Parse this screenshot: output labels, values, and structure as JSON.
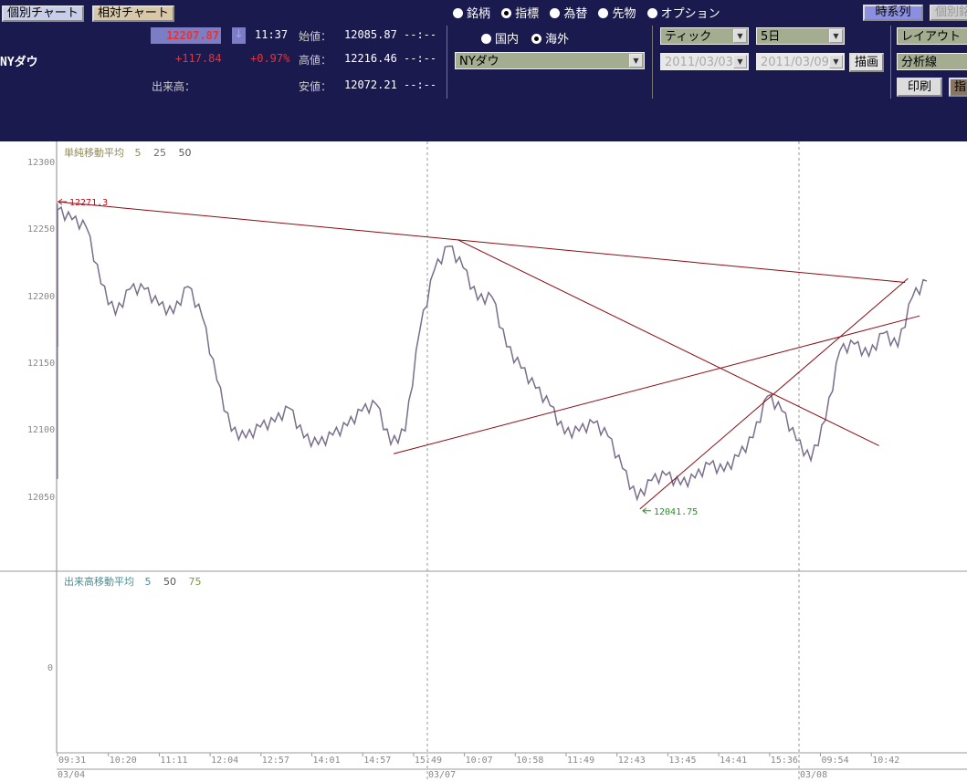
{
  "header": {
    "tabs": [
      "個別チャート",
      "相対チャート"
    ],
    "symbol": "NYダウ",
    "price": "12207.87",
    "arrow": "↓",
    "time": "11:37",
    "change": "+117.84",
    "change_pct": "+0.97%",
    "volume_label": "出来高：",
    "open_label": "始値：",
    "open": "12085.87",
    "open_time": "--:--",
    "high_label": "高値：",
    "high": "12216.46",
    "high_time": "--:--",
    "low_label": "安値：",
    "low": "12072.21",
    "low_time": "--:--"
  },
  "controls": {
    "category_radios": [
      {
        "label": "銘柄",
        "on": false
      },
      {
        "label": "指標",
        "on": true
      },
      {
        "label": "為替",
        "on": false
      },
      {
        "label": "先物",
        "on": false
      },
      {
        "label": "オプション",
        "on": false
      }
    ],
    "region_radios": [
      {
        "label": "国内",
        "on": false
      },
      {
        "label": "海外",
        "on": true
      }
    ],
    "symbol_select": "NYダウ",
    "interval_select": "ティック",
    "period_select": "5日",
    "date_from": "2011/03/03",
    "date_to": "2011/03/09",
    "draw_button": "描画",
    "timeseries_button": "時系列",
    "individual_button": "個別銘",
    "layout_select": "レイアウト",
    "analysis_select": "分析線",
    "print_button": "印刷",
    "indicator_button": "指"
  },
  "colors": {
    "header_bg": "#1b1a4e",
    "price_line": "#7a6f8a",
    "trend_line": "#8b0a14",
    "high_marker": "#c0101a",
    "low_marker": "#1a9a1a"
  },
  "chart_data": {
    "type": "line",
    "price_panel": {
      "legend_title": "単純移動平均",
      "legend_periods": [
        "5",
        "25",
        "50"
      ],
      "yticks": [
        "12300",
        "12250",
        "12200",
        "12150",
        "12100",
        "12050"
      ],
      "ylim": [
        12000,
        12300
      ],
      "prices": [
        12265,
        12258,
        12252,
        12210,
        12187,
        12206,
        12206,
        12194,
        12188,
        12208,
        12185,
        12138,
        12100,
        12095,
        12103,
        12107,
        12117,
        12095,
        12090,
        12097,
        12104,
        12115,
        12120,
        12090,
        12100,
        12175,
        12220,
        12238,
        12222,
        12198,
        12200,
        12163,
        12147,
        12132,
        12119,
        12098,
        12100,
        12106,
        12096,
        12072,
        12049,
        12063,
        12067,
        12060,
        12065,
        12075,
        12070,
        12081,
        12095,
        12126,
        12115,
        12093,
        12078,
        12108,
        12160,
        12165,
        12156,
        12173,
        12163,
        12200,
        12212
      ],
      "high_marker": "12271.3",
      "low_marker": "12041.75",
      "trend_lines": [
        [
          0,
          12271.3,
          58.5,
          12211
        ],
        [
          27.6,
          12243,
          56.7,
          12089
        ],
        [
          23.2,
          12083,
          59.5,
          12186
        ],
        [
          40.2,
          12041.75,
          58.7,
          12214
        ]
      ]
    },
    "volume_panel": {
      "legend_title": "出来高移動平均",
      "legend_periods": [
        "5",
        "50",
        "75"
      ],
      "yticks": [
        "0"
      ]
    },
    "xticks": [
      "09:31",
      "10:20",
      "11:11",
      "12:04",
      "12:57",
      "14:01",
      "14:57",
      "15:49",
      "10:07",
      "10:58",
      "11:49",
      "12:43",
      "13:45",
      "14:41",
      "15:36",
      "09:54",
      "10:42"
    ],
    "dates": [
      "03/04",
      "03/07",
      "03/08"
    ]
  }
}
